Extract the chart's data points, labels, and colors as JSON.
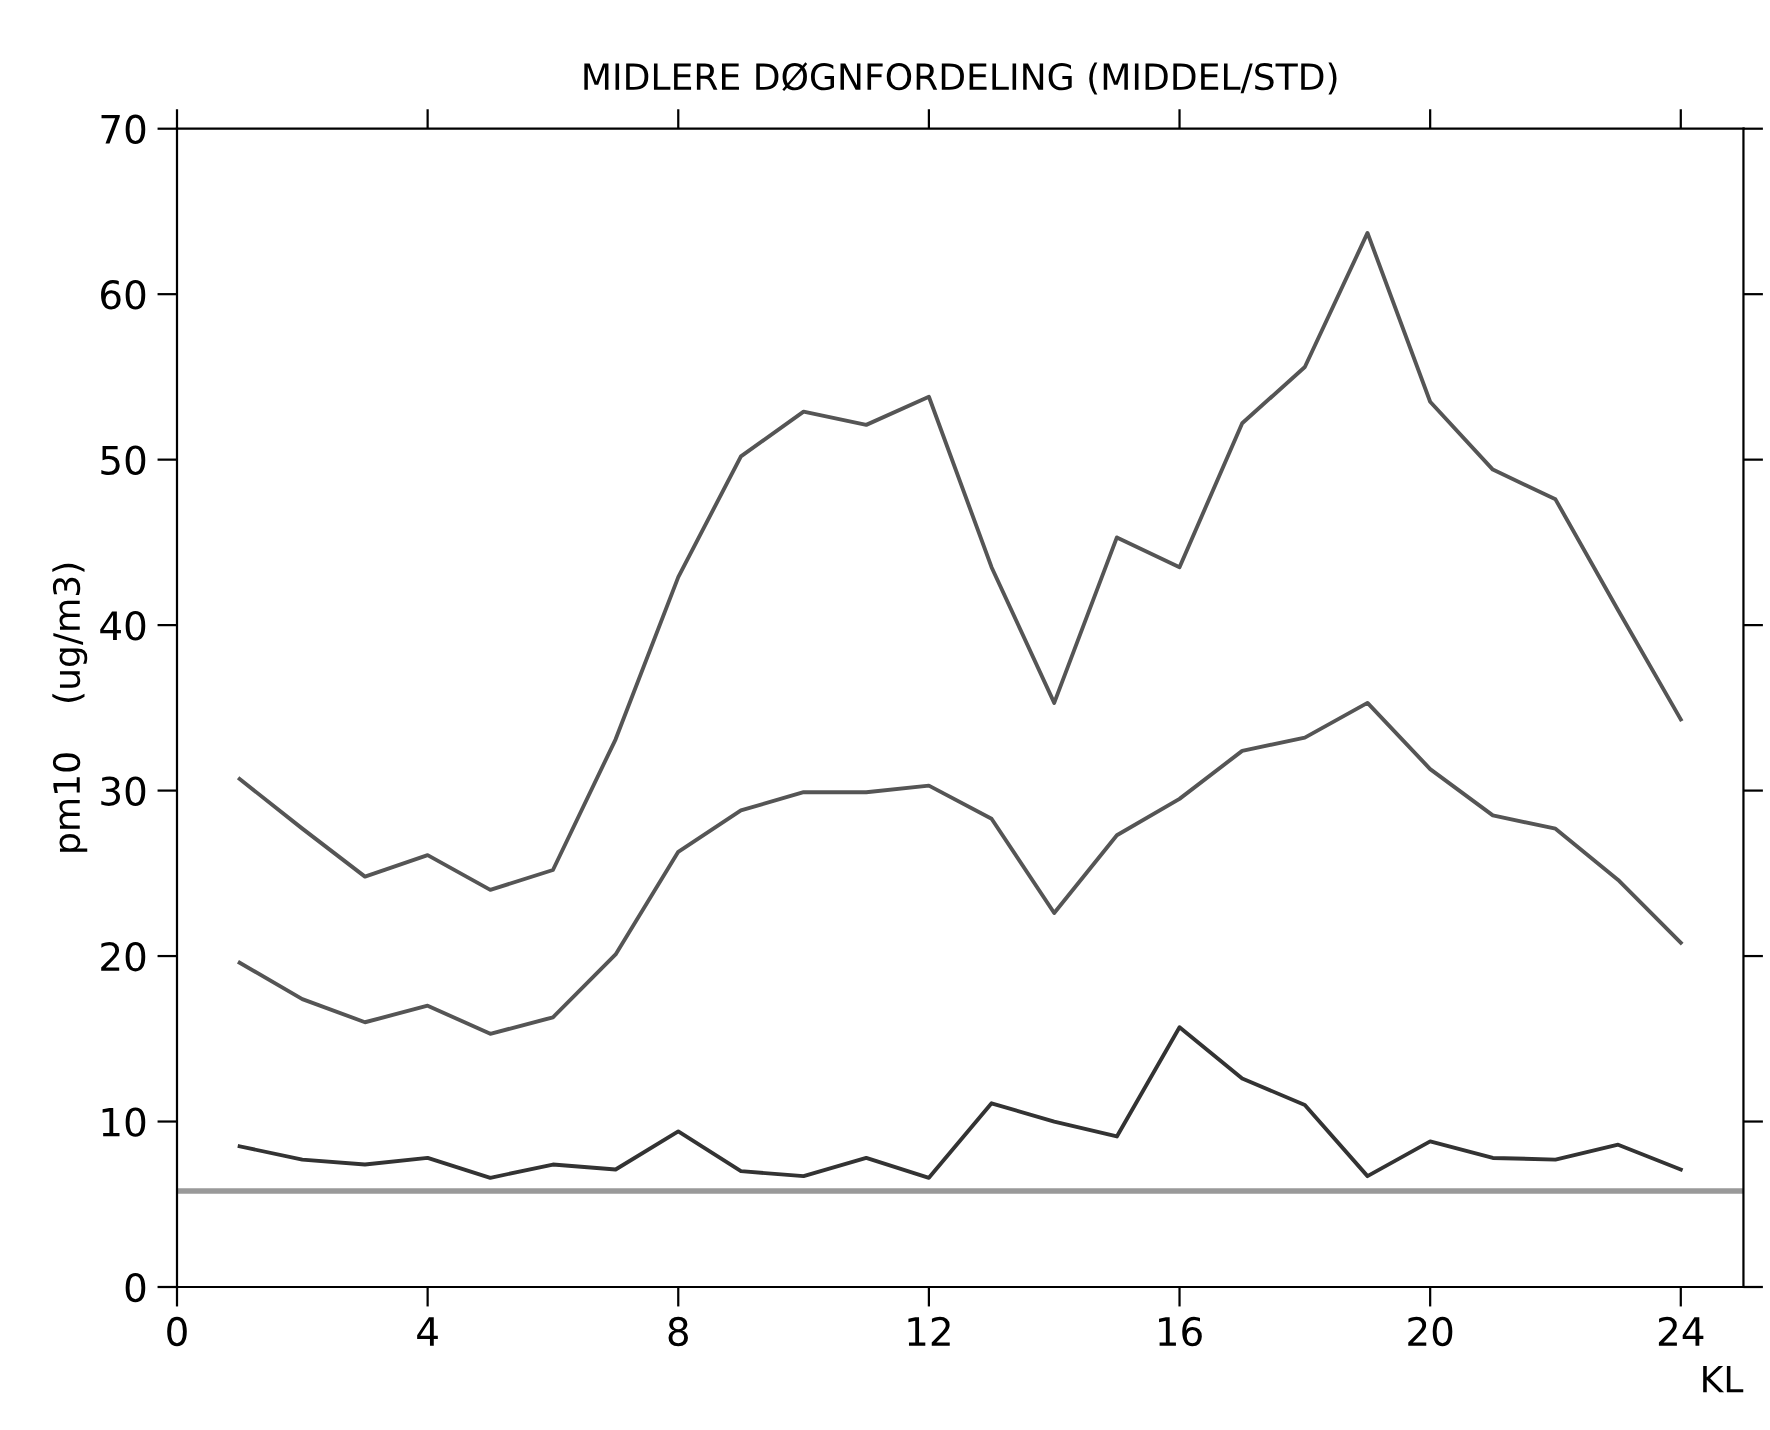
{
  "chart_data": {
    "type": "line",
    "title": "MIDLERE DØGNFORDELING (MIDDEL/STD)",
    "xlabel": "KL",
    "ylabel": "pm10    (ug/m3)",
    "x": [
      1,
      2,
      3,
      4,
      5,
      6,
      7,
      8,
      9,
      10,
      11,
      12,
      13,
      14,
      15,
      16,
      17,
      18,
      19,
      20,
      21,
      22,
      23,
      24
    ],
    "series": [
      {
        "color": "#555555",
        "values": [
          30.7,
          27.7,
          24.8,
          26.1,
          24.0,
          25.2,
          33.1,
          42.9,
          50.2,
          52.9,
          52.1,
          53.8,
          43.5,
          35.3,
          45.3,
          43.5,
          52.2,
          55.6,
          63.7,
          53.5,
          49.4,
          47.6,
          40.9,
          34.3
        ]
      },
      {
        "color": "#555555",
        "values": [
          19.6,
          17.4,
          16.0,
          17.0,
          15.3,
          16.3,
          20.1,
          26.3,
          28.8,
          29.9,
          29.9,
          30.3,
          28.3,
          22.6,
          27.3,
          29.5,
          32.4,
          33.2,
          35.3,
          31.3,
          28.5,
          27.7,
          24.6,
          20.8
        ]
      },
      {
        "color": "#333333",
        "values": [
          8.5,
          7.7,
          7.4,
          7.8,
          6.6,
          7.4,
          7.1,
          9.4,
          7.0,
          6.7,
          7.8,
          6.6,
          11.1,
          10.0,
          9.1,
          15.7,
          12.6,
          11.0,
          6.7,
          8.8,
          7.8,
          7.7,
          8.6,
          7.1
        ]
      }
    ],
    "ref_lines": [
      {
        "axis": "y",
        "value": 5.8,
        "color": "#999999"
      }
    ],
    "xlim": [
      0,
      25
    ],
    "ylim": [
      0,
      70
    ],
    "xticks": [
      0,
      4,
      8,
      12,
      16,
      20,
      24
    ],
    "yticks": [
      0,
      10,
      20,
      30,
      40,
      50,
      60,
      70
    ],
    "grid": false,
    "marker": "none",
    "line_style": "solid"
  }
}
